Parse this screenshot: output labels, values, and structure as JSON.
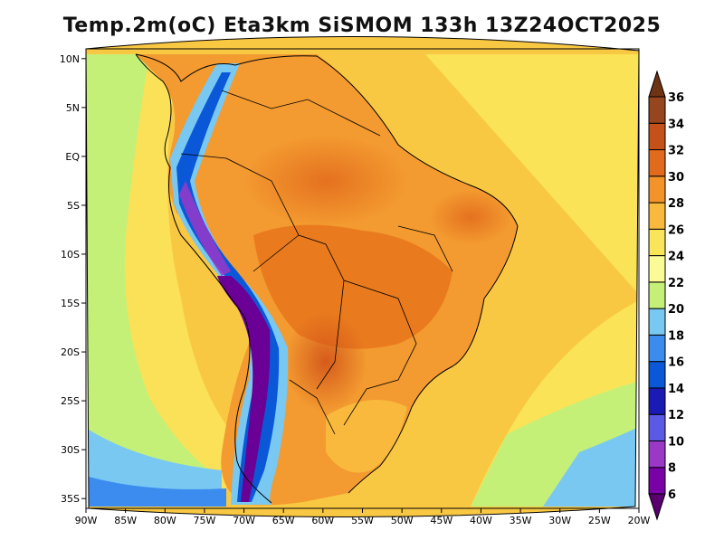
{
  "title": "Temp.2m(oC) Eta3km SiSMOM 133h 13Z24OCT2025",
  "map": {
    "projection": "polyconic",
    "lon_range": [
      -90,
      -20
    ],
    "lat_range": [
      -36,
      11
    ],
    "x_ticks": [
      {
        "lon": -90,
        "label": "90W"
      },
      {
        "lon": -85,
        "label": "85W"
      },
      {
        "lon": -80,
        "label": "80W"
      },
      {
        "lon": -75,
        "label": "75W"
      },
      {
        "lon": -70,
        "label": "70W"
      },
      {
        "lon": -65,
        "label": "65W"
      },
      {
        "lon": -60,
        "label": "60W"
      },
      {
        "lon": -55,
        "label": "55W"
      },
      {
        "lon": -50,
        "label": "50W"
      },
      {
        "lon": -45,
        "label": "45W"
      },
      {
        "lon": -40,
        "label": "40W"
      },
      {
        "lon": -35,
        "label": "35W"
      },
      {
        "lon": -30,
        "label": "30W"
      },
      {
        "lon": -25,
        "label": "25W"
      },
      {
        "lon": -20,
        "label": "20W"
      }
    ],
    "y_ticks": [
      {
        "lat": 10,
        "label": "10N"
      },
      {
        "lat": 5,
        "label": "5N"
      },
      {
        "lat": 0,
        "label": "EQ"
      },
      {
        "lat": -5,
        "label": "5S"
      },
      {
        "lat": -10,
        "label": "10S"
      },
      {
        "lat": -15,
        "label": "15S"
      },
      {
        "lat": -20,
        "label": "20S"
      },
      {
        "lat": -25,
        "label": "25S"
      },
      {
        "lat": -30,
        "label": "30S"
      },
      {
        "lat": -35,
        "label": "35S"
      }
    ]
  },
  "colorbar": {
    "unit": "oC",
    "levels": [
      6,
      8,
      10,
      12,
      14,
      16,
      18,
      20,
      22,
      24,
      26,
      28,
      30,
      32,
      34,
      36
    ],
    "labels": [
      "6",
      "8",
      "10",
      "12",
      "14",
      "16",
      "18",
      "20",
      "22",
      "24",
      "26",
      "28",
      "30",
      "32",
      "34",
      "36"
    ],
    "colors": [
      "#7a00a8",
      "#9a38c8",
      "#5a5ae6",
      "#1a1ab4",
      "#0a58d8",
      "#3c8cf0",
      "#78c8f2",
      "#c4f078",
      "#fafa96",
      "#fae55a",
      "#f9b93c",
      "#f3932a",
      "#e26a1c",
      "#c4501a",
      "#96461e"
    ],
    "under_color": "#5a006e",
    "over_color": "#6e3214"
  }
}
